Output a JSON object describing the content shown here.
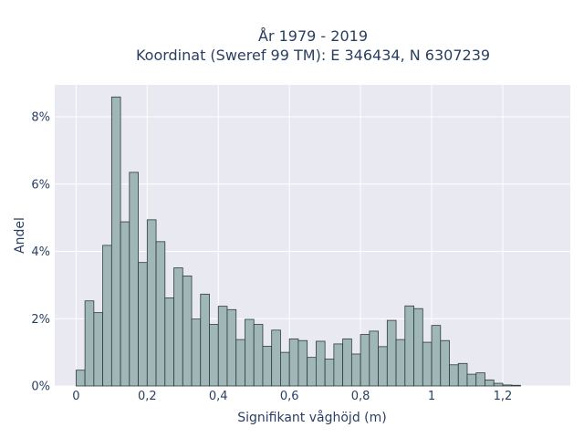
{
  "chart_data": {
    "type": "bar",
    "title_line1": "År 1979 - 2019",
    "title_line2": "Koordinat (Sweref 99 TM): E 346434, N 6307239",
    "xlabel": "Signifikant våghöjd (m)",
    "ylabel": "Andel",
    "xlim": [
      -0.06,
      1.39
    ],
    "ylim": [
      0,
      0.0895
    ],
    "xticks": [
      0,
      0.2,
      0.4,
      0.6,
      0.8,
      1,
      1.2
    ],
    "xtick_labels": [
      "0",
      "0,2",
      "0,4",
      "0,6",
      "0,8",
      "1",
      "1,2"
    ],
    "yticks": [
      0,
      0.02,
      0.04,
      0.06,
      0.08
    ],
    "ytick_labels": [
      "0%",
      "2%",
      "4%",
      "6%",
      "8%"
    ],
    "bin_start": 0.0,
    "bin_width": 0.025,
    "values": [
      0.0047,
      0.0253,
      0.0218,
      0.0418,
      0.0859,
      0.0488,
      0.0635,
      0.0367,
      0.0494,
      0.0429,
      0.0262,
      0.0351,
      0.0327,
      0.0199,
      0.0273,
      0.0183,
      0.0237,
      0.0227,
      0.0138,
      0.0198,
      0.0183,
      0.0118,
      0.0166,
      0.01,
      0.014,
      0.0135,
      0.0085,
      0.0133,
      0.008,
      0.0125,
      0.014,
      0.0095,
      0.0153,
      0.0163,
      0.0117,
      0.0195,
      0.0138,
      0.0238,
      0.023,
      0.013,
      0.018,
      0.0135,
      0.0063,
      0.0067,
      0.0035,
      0.0039,
      0.0018,
      0.0008,
      0.0003,
      0.0002
    ],
    "grid": true,
    "colors": {
      "plot_bg": "#e9e9f2",
      "grid": "#ffffff",
      "bar_fill": "#9fb7b6",
      "bar_edge": "#2f3b3b"
    }
  }
}
